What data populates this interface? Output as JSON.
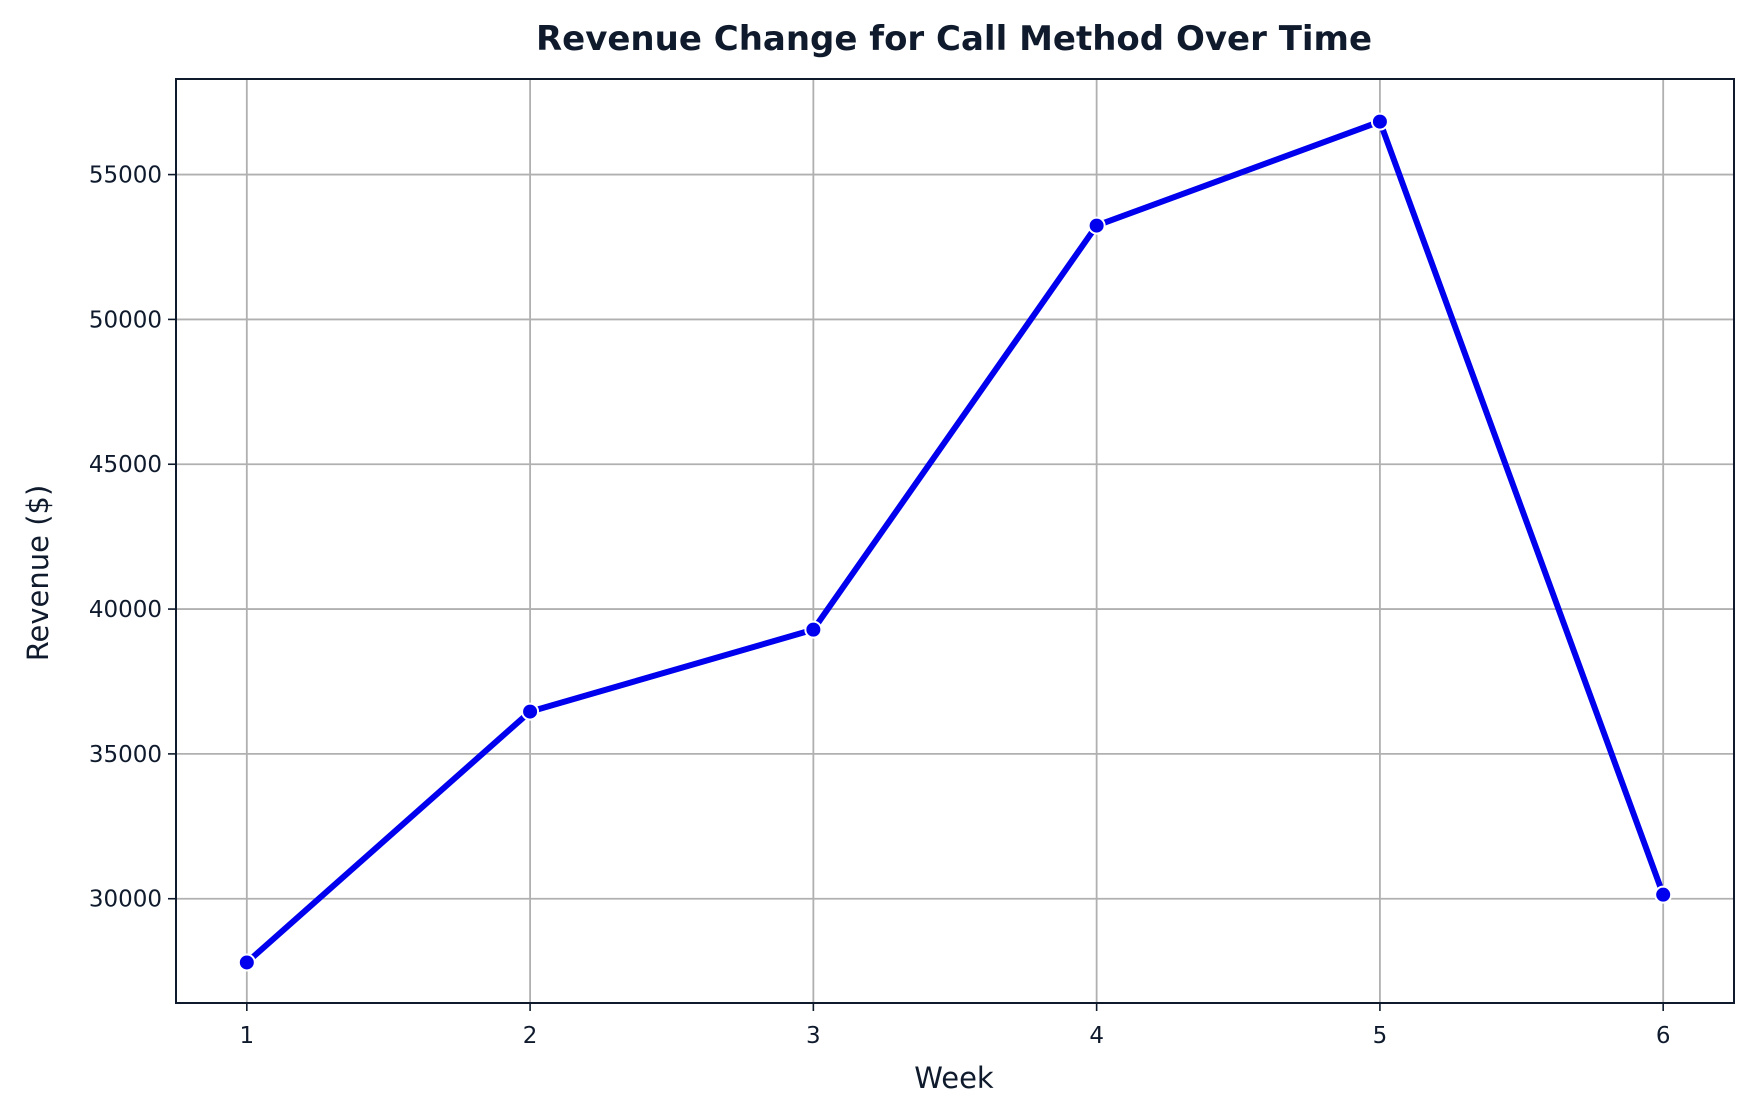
{
  "chart_data": {
    "type": "line",
    "title": "Revenue Change for Call Method Over Time",
    "xlabel": "Week",
    "ylabel": "Revenue ($)",
    "x": [
      1,
      2,
      3,
      4,
      5,
      6
    ],
    "xticks": [
      "1",
      "2",
      "3",
      "4",
      "5",
      "6"
    ],
    "yticks": [
      30000,
      35000,
      40000,
      45000,
      50000,
      55000
    ],
    "ytick_labels": [
      "30000",
      "35000",
      "40000",
      "45000",
      "50000",
      "55000"
    ],
    "xlim": [
      0.75,
      6.25
    ],
    "ylim": [
      26400,
      58300
    ],
    "grid": true,
    "series": [
      {
        "values": [
          27800,
          36460,
          39290,
          53240,
          56830,
          30140
        ],
        "color": "#0000ee"
      }
    ]
  }
}
